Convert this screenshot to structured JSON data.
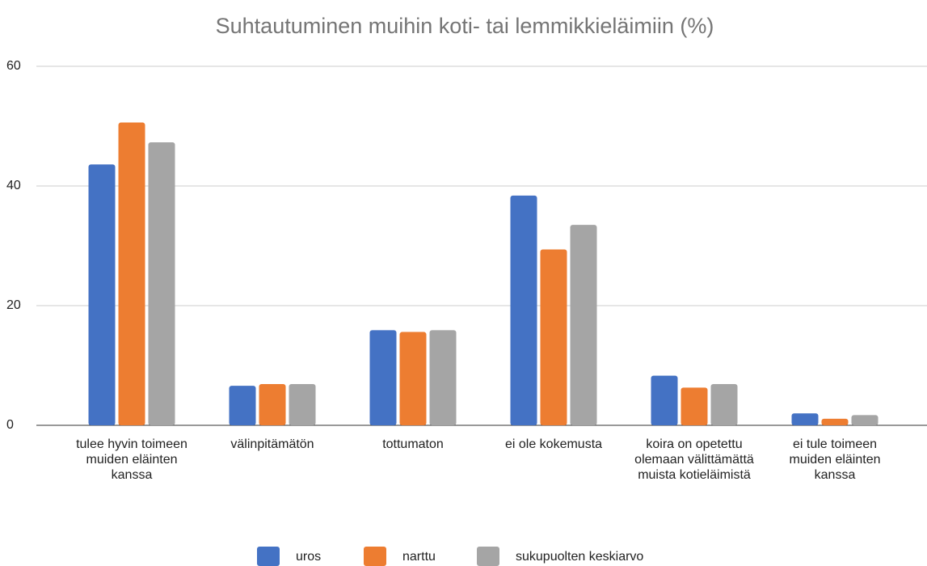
{
  "chart_data": {
    "type": "bar",
    "title": "Suhtautuminen muihin koti- tai lemmikkieläimiin (%)",
    "categories": [
      "tulee hyvin toimeen muiden eläinten kanssa",
      "välinpitämätön",
      "tottumaton",
      "ei ole kokemusta",
      "koira on opetettu olemaan välittämättä muista kotieläimistä",
      "ei tule toimeen muiden eläinten kanssa"
    ],
    "series": [
      {
        "name": "uros",
        "color": "#4472c4",
        "values": [
          43.6,
          6.6,
          15.9,
          38.4,
          8.3,
          2.0
        ]
      },
      {
        "name": "narttu",
        "color": "#ed7d31",
        "values": [
          50.6,
          6.9,
          15.6,
          29.4,
          6.3,
          1.1
        ]
      },
      {
        "name": "sukupuolten keskiarvo",
        "color": "#a5a5a5",
        "values": [
          47.3,
          6.9,
          15.9,
          33.5,
          6.9,
          1.7
        ]
      }
    ],
    "ylim": [
      0,
      60
    ],
    "yticks": [
      0,
      20,
      40,
      60
    ],
    "grid": true,
    "legend": "bottom"
  }
}
